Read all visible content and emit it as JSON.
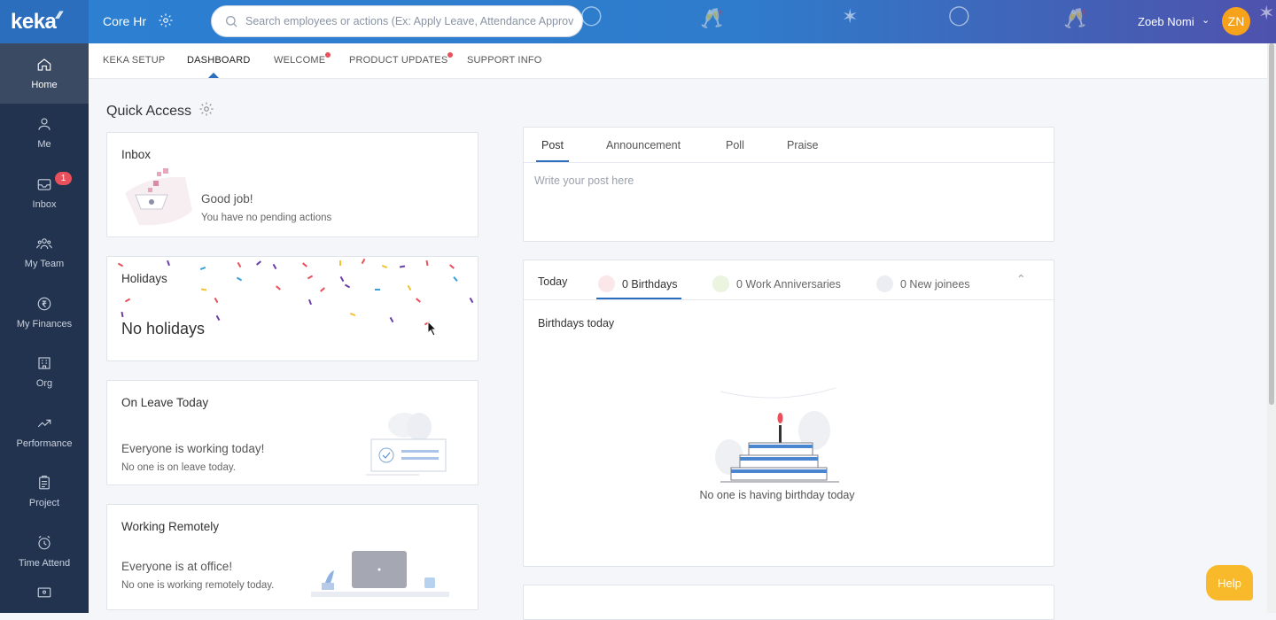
{
  "app": {
    "logo": "keka"
  },
  "sidebar": {
    "items": [
      {
        "label": "Home",
        "icon": "home-icon",
        "active": true
      },
      {
        "label": "Me",
        "icon": "user-icon"
      },
      {
        "label": "Inbox",
        "icon": "inbox-icon",
        "badge": "1"
      },
      {
        "label": "My Team",
        "icon": "team-icon"
      },
      {
        "label": "My Finances",
        "icon": "rupee-icon"
      },
      {
        "label": "Org",
        "icon": "org-icon"
      },
      {
        "label": "Performance",
        "icon": "trend-icon"
      },
      {
        "label": "Project",
        "icon": "clipboard-icon"
      },
      {
        "label": "Time Attend",
        "icon": "clock-icon"
      }
    ]
  },
  "topbar": {
    "module_title": "Core Hr",
    "search_placeholder": "Search employees or actions (Ex: Apply Leave, Attendance Approvals)",
    "user_name": "Zoeb Nomi",
    "user_initials": "ZN",
    "colors": {
      "gradient_start": "#2c7fd1",
      "gradient_end": "#4f52ad",
      "avatar": "#f7a21b"
    }
  },
  "tabs": [
    {
      "label": "KEKA SETUP"
    },
    {
      "label": "DASHBOARD",
      "active": true
    },
    {
      "label": "WELCOME",
      "dot": true
    },
    {
      "label": "PRODUCT UPDATES",
      "dot": true
    },
    {
      "label": "SUPPORT INFO"
    }
  ],
  "quick_access": {
    "title": "Quick Access",
    "inbox": {
      "title": "Inbox",
      "status": "Good job!",
      "sub": "You have no pending actions"
    },
    "holidays": {
      "title": "Holidays",
      "text": "No holidays"
    },
    "on_leave": {
      "title": "On Leave Today",
      "status": "Everyone is working today!",
      "sub": "No one is on leave today."
    },
    "remote": {
      "title": "Working Remotely",
      "status": "Everyone is at office!",
      "sub": "No one is working remotely today."
    }
  },
  "post": {
    "tabs": [
      "Post",
      "Announcement",
      "Poll",
      "Praise"
    ],
    "active_tab": "Post",
    "placeholder": "Write your post here"
  },
  "celebrations": {
    "today_label": "Today",
    "tabs": [
      {
        "label": "0 Birthdays",
        "icon": "cake-icon",
        "active": true
      },
      {
        "label": "0 Work Anniversaries",
        "icon": "party-icon"
      },
      {
        "label": "0 New joinees",
        "icon": "person-icon"
      }
    ],
    "section_title": "Birthdays today",
    "empty_text": "No one is having birthday today"
  },
  "help_button": "Help",
  "accent_color": "#2a6ebd"
}
